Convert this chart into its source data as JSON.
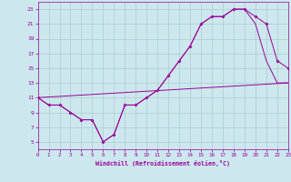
{
  "xlabel": "Windchill (Refroidissement éolien,°C)",
  "background_color": "#cce8ee",
  "line_color": "#990099",
  "grid_color": "#aacccc",
  "xmin": 0,
  "xmax": 23,
  "ymin": 4,
  "ymax": 24,
  "yticks": [
    5,
    7,
    9,
    11,
    13,
    15,
    17,
    19,
    21,
    23
  ],
  "xticks": [
    0,
    1,
    2,
    3,
    4,
    5,
    6,
    7,
    8,
    9,
    10,
    11,
    12,
    13,
    14,
    15,
    16,
    17,
    18,
    19,
    20,
    21,
    22,
    23
  ],
  "line1_x": [
    0,
    1,
    2,
    3,
    4,
    5,
    6,
    7,
    8,
    9,
    10,
    11,
    12,
    13,
    14,
    15,
    16,
    17,
    18,
    19,
    20,
    21,
    22,
    23
  ],
  "line1_y": [
    11,
    10,
    10,
    9,
    8,
    8,
    5,
    6,
    10,
    10,
    11,
    12,
    14,
    16,
    18,
    21,
    22,
    22,
    23,
    23,
    22,
    21,
    16,
    15
  ],
  "line2_x": [
    0,
    1,
    2,
    3,
    4,
    5,
    6,
    7,
    8,
    9,
    10,
    11,
    12,
    13,
    14,
    15,
    16,
    17,
    18,
    19,
    20,
    21,
    22,
    23
  ],
  "line2_y": [
    11,
    10,
    10,
    9,
    8,
    8,
    5,
    6,
    10,
    10,
    11,
    12,
    14,
    16,
    18,
    21,
    22,
    22,
    23,
    23,
    21,
    16,
    13,
    13
  ],
  "line3_x": [
    0,
    23
  ],
  "line3_y": [
    11,
    13
  ]
}
